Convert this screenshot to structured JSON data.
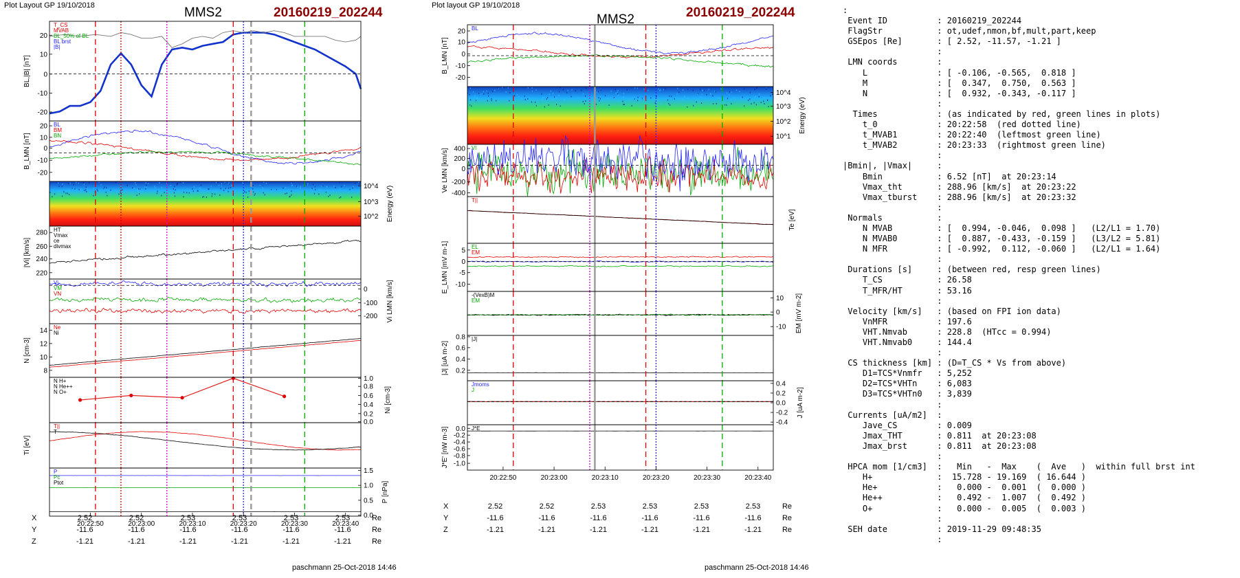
{
  "header": {
    "layout1": "Plot Layout GP 19/10/2018",
    "layout2": "Plot layout GP 19/10/2018",
    "spacecraft": "MMS2",
    "event": "20160219_202244",
    "footer": "paschmann 25-Oct-2018 14:46"
  },
  "colors": {
    "event": "#8b0000",
    "red_line": "#e00000",
    "green_line": "#00aa00",
    "magenta_line": "#cc00cc",
    "blue_line": "#2222ff",
    "gray_line": "#999999"
  },
  "chart_data": [
    {
      "type": "line",
      "panel": "left",
      "x_time_ticks": [
        "20:22:50",
        "20:23:00",
        "20:23:10",
        "20:23:20",
        "20:23:30",
        "20:23:40"
      ],
      "x_range": [
        "20:22:42",
        "20:23:43"
      ],
      "marker_lines": [
        {
          "time": "20:22:51",
          "color": "red",
          "style": "dashed"
        },
        {
          "time": "20:22:56",
          "color": "red",
          "style": "dotted"
        },
        {
          "time": "20:23:05",
          "color": "magenta",
          "style": "dotted"
        },
        {
          "time": "20:23:18",
          "color": "red",
          "style": "dashed"
        },
        {
          "time": "20:23:20",
          "color": "blue",
          "style": "dotted"
        },
        {
          "time": "20:23:21.5",
          "color": "gray",
          "style": "dashed"
        },
        {
          "time": "20:23:32",
          "color": "green",
          "style": "dashed"
        }
      ],
      "panels": [
        {
          "id": "BL",
          "ylabel": "BL,|B| [nT]",
          "ylim": [
            -25,
            28
          ],
          "yticks": [
            "20",
            "10",
            "0",
            "-10",
            "-20"
          ],
          "legend": [
            "T_CS",
            "MVAB",
            "BL_50% of BL",
            "BL brst",
            "|B|"
          ],
          "legend_colors": [
            "#e00000",
            "#e00000",
            "#00aa00",
            "#2222ff",
            "#2222ff",
            "#888888"
          ],
          "series": [
            {
              "color": "#1133cc",
              "width": 2.6,
              "x": [
                0,
                2,
                4,
                6,
                8,
                10,
                12,
                14,
                16,
                18,
                20,
                22,
                24,
                26,
                28,
                30,
                32,
                34,
                36,
                38,
                40,
                42,
                44,
                46,
                48,
                50,
                52,
                54,
                56,
                58,
                60,
                61
              ],
              "y": [
                -21,
                -20,
                -17,
                -17,
                -15,
                -9,
                5,
                11,
                5,
                -6,
                -12,
                5,
                13,
                14,
                13,
                15,
                16,
                17,
                21,
                22,
                22,
                22,
                21,
                19,
                17,
                15,
                13,
                10,
                7,
                4,
                0,
                -8
              ]
            },
            {
              "color": "#777777",
              "width": 0.9,
              "x": [
                0,
                3,
                6,
                9,
                12,
                14,
                16,
                18,
                20,
                22,
                24,
                26,
                28,
                30,
                32,
                34,
                36,
                38,
                40,
                42,
                44,
                46,
                48,
                50,
                52,
                54,
                56,
                58,
                60,
                61
              ],
              "y": [
                20,
                21,
                20,
                21,
                20,
                22,
                21,
                19,
                19,
                20,
                14,
                16,
                19,
                20,
                19,
                22,
                23,
                22,
                23,
                22,
                23,
                22,
                20,
                20,
                20,
                20,
                18,
                17,
                18,
                20
              ]
            }
          ]
        },
        {
          "id": "BLMN",
          "ylabel": "B_LMN [nT]",
          "ylim": [
            -25,
            28
          ],
          "yticks": [
            "20",
            "10",
            "0",
            "-10",
            "-20"
          ],
          "legend": [
            "BL",
            "BM",
            "BN"
          ]
        },
        {
          "id": "SPEC",
          "ylabel": "Energy (eV)",
          "ylim": [
            10,
            30000
          ],
          "yticks": [
            "10^4",
            "10^3",
            "10^2"
          ]
        },
        {
          "id": "VI",
          "ylabel": "|Vi| [km/s]",
          "ylim": [
            218,
            290
          ],
          "yticks": [
            "280",
            "260",
            "240",
            "220"
          ],
          "legend": [
            "HT",
            "Vmax",
            "ce",
            "divmax"
          ]
        },
        {
          "id": "VIL",
          "ylabel": "Vi LMN [km/s]",
          "ylim": [
            -240,
            40
          ],
          "yticks": [
            "0",
            "-100",
            "-200"
          ],
          "legend": [
            "Vi",
            "VM",
            "VN"
          ]
        },
        {
          "id": "N",
          "ylabel": "N [cm-3]",
          "ylim": [
            7,
            15
          ],
          "yticks": [
            "14",
            "12",
            "10",
            "8"
          ],
          "legend": [
            "Ne",
            "Ni"
          ]
        },
        {
          "id": "HP",
          "ylabel": "Ni [cm-3]",
          "ylim": [
            0,
            1
          ],
          "yticks": [
            "1.0",
            "0.8",
            "0.6",
            "0.4",
            "0.2",
            "0.0"
          ],
          "legend": [
            "N H+",
            "N He++",
            "N O+"
          ],
          "series": [
            {
              "color": "#e02020",
              "markers": true,
              "x": [
                6,
                16,
                26,
                36,
                46
              ],
              "y": [
                0.5,
                0.6,
                0.55,
                0.98,
                0.58
              ]
            }
          ]
        },
        {
          "id": "TI",
          "ylabel": "Ti [eV]",
          "ylim": [
            0,
            10
          ],
          "legend": [
            "T||",
            "T"
          ]
        },
        {
          "id": "P",
          "ylabel": "P [nPa]",
          "ylim": [
            0,
            1.6
          ],
          "yticks": [
            "1.5",
            "1.0",
            "0.5",
            "0.0"
          ],
          "legend": [
            "P",
            "Pc",
            "Ptot"
          ]
        }
      ]
    },
    {
      "type": "line",
      "panel": "middle",
      "x_time_ticks": [
        "20:22:50",
        "20:23:00",
        "20:23:10",
        "20:23:20",
        "20:23:30",
        "20:23:40"
      ],
      "x_range": [
        "20:22:43",
        "20:23:43"
      ],
      "marker_lines": [
        {
          "time": "20:22:52",
          "color": "red",
          "style": "dashed"
        },
        {
          "time": "20:23:07",
          "color": "magenta",
          "style": "dotted"
        },
        {
          "time": "20:23:08",
          "color": "gray",
          "style": "solid"
        },
        {
          "time": "20:23:18",
          "color": "red",
          "style": "dashed"
        },
        {
          "time": "20:23:20",
          "color": "blue",
          "style": "dotted"
        },
        {
          "time": "20:23:33",
          "color": "green",
          "style": "dashed"
        }
      ],
      "panels": [
        {
          "id": "B2",
          "ylabel": "B_LMN [nT]",
          "ylim": [
            -25,
            25
          ],
          "yticks": [
            "20",
            "10",
            "0",
            "-10",
            "-20"
          ],
          "legend": [
            "BL"
          ]
        },
        {
          "id": "SPEC2",
          "ylabel": "Energy (eV)",
          "ylim": [
            10,
            30000
          ],
          "yticks": [
            "10^4",
            "10^3",
            "10^2",
            "10^1"
          ]
        },
        {
          "id": "VE",
          "ylabel": "Ve LMN [km/s]",
          "ylim": [
            -450,
            300
          ],
          "yticks": [
            "400",
            "200",
            "0",
            "-200",
            "-400"
          ],
          "legend": [
            "Vl"
          ]
        },
        {
          "id": "TE",
          "ylabel": "Te [eV]",
          "ylim": [
            0,
            10
          ],
          "legend": [
            "T||"
          ]
        },
        {
          "id": "E",
          "ylabel": "E_LMN [mV m-1]",
          "ylim": [
            -13,
            8
          ],
          "yticks": [
            "5",
            "0",
            "-5",
            "-10"
          ],
          "legend": [
            "EL",
            "EM"
          ]
        },
        {
          "id": "EM",
          "ylabel": "EM [mV m-2]",
          "ylim": [
            -14,
            16
          ],
          "yticks": [
            "10",
            "0",
            "-10"
          ],
          "legend": [
            "-(VexB)M",
            "EM"
          ]
        },
        {
          "id": "J",
          "ylabel": "|J| [uA m-2]",
          "ylim": [
            0,
            0.85
          ],
          "yticks": [
            "0.8",
            "0.6",
            "0.4",
            "0.2"
          ],
          "legend": [
            "|J|"
          ]
        },
        {
          "id": "JLMN",
          "ylabel": "J [uA m-2]",
          "ylim": [
            -0.5,
            0.45
          ],
          "yticks": [
            "0.4",
            "0.2",
            "0.0",
            "-0.2",
            "-0.4"
          ],
          "legend": [
            "Jmoms",
            "J"
          ]
        },
        {
          "id": "JE",
          "ylabel": "J*E' [nW m-3]",
          "ylim": [
            -1.1,
            0.2
          ],
          "yticks": [
            "0.0",
            "-0.2",
            "-0.4",
            "-0.6",
            "-0.8",
            "-1.0"
          ],
          "legend": [
            "J*E"
          ]
        }
      ]
    }
  ],
  "coords_left": {
    "X": [
      "2.52",
      "2.52",
      "2.53",
      "2.53",
      "2.53",
      "2.53"
    ],
    "Y": [
      "-11.6",
      "-11.6",
      "-11.6",
      "-11.6",
      "-11.6",
      "-11.6"
    ],
    "Z": [
      "-1.21",
      "-1.21",
      "-1.21",
      "-1.21",
      "-1.21",
      "-1.21"
    ],
    "unit": "Re"
  },
  "coords_mid": {
    "X": [
      "2.52",
      "2.52",
      "2.53",
      "2.53",
      "2.53",
      "2.53"
    ],
    "Y": [
      "-11.6",
      "-11.6",
      "-11.6",
      "-11.6",
      "-11.6",
      "-11.6"
    ],
    "Z": [
      "-1.21",
      "-1.21",
      "-1.21",
      "-1.21",
      "-1.21",
      "-1.21"
    ],
    "unit": "Re"
  },
  "summary": ":\n Event ID          : 20160219_202244\n FlagStr           : ot,udef,nmon,bf,mult,part,keep\n GSEpos [Re]       : [ 2.52, -11.57, -1.21 ]\n                   :\n LMN coords        :\n    L              : [ -0.106, -0.565,  0.818 ]\n    M              : [  0.347,  0.750,  0.563 ]\n    N              : [  0.932, -0.343, -0.117 ]\n                   :\n  Times            : (as indicated by red, green lines in plots)\n    t_0            : 20:22:58  (red dotted line)\n    t_MVAB1        : 20:22:40  (leftmost green line)\n    t_MVAB2        : 20:23:33  (rightmost green line)\n                   :\n|Bmin|, |Vmax|     :\n    Bmin           : 6.52 [nT]  at 20:23:14\n    Vmax_tht       : 288.96 [km/s]  at 20:23:22\n    Vmax_tburst    : 288.96 [km/s]  at 20:23:32\n                   :\n Normals           :\n    N MVAB         : [  0.994, -0.046,  0.098 ]   (L2/L1 = 1.70)\n    N MVAB0        : [  0.887, -0.433, -0.159 ]   (L3/L2 = 5.81)\n    N MFR          : [ -0.992,  0.112, -0.060 ]   (L2/L1 = 1.64)\n                   :\n Durations [s]     : (between red, resp green lines)\n    T_CS           : 26.58\n    T_MFR/HT       : 53.16\n                   :\n Velocity [km/s]   : (based on FPI ion data)\n    VnMFR          : 197.6\n    VHT.Nmvab      : 228.8  (HTcc = 0.994)\n    VHT.Nmvab0     : 144.4\n                   :\n CS thickness [km] : (D=T_CS * Vs from above)\n    D1=TCS*Vnmfr   : 5,252\n    D2=TCS*VHTn    : 6,083\n    D3=TCS*VHTn0   : 3,839\n                   :\n Currents [uA/m2]  :\n    Jave_CS        : 0.009\n    Jmax_THT       : 0.811  at 20:23:08\n    Jmax_brst      : 0.811  at 20:23:08\n                   :\n HPCA mom [1/cm3]  :   Min   -  Max    (  Ave   )  within full brst int\n    H+             :  15.728 - 19.169  ( 16.644 )\n    He+            :   0.000 -  0.001  (  0.000 )\n    He++           :   0.492 -  1.007  (  0.492 )\n    O+             :   0.000 -  0.005  (  0.003 )\n                   :\n SEH date          : 2019-11-29 09:48:35\n                   :"
}
